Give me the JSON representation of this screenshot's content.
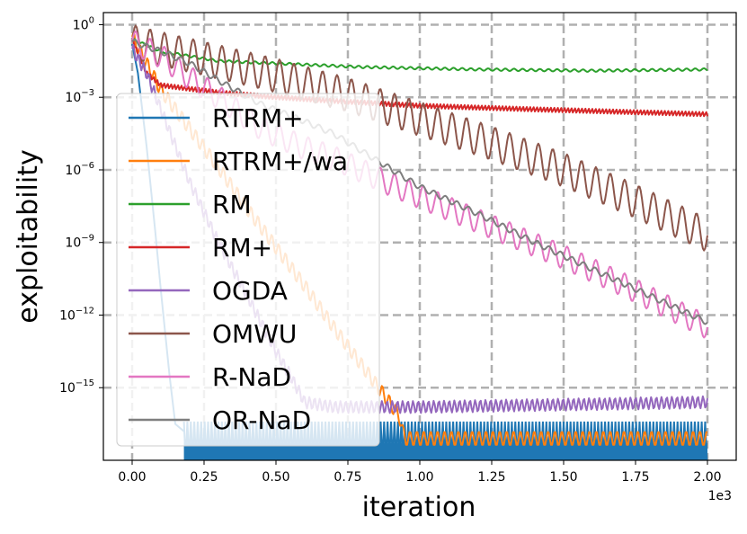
{
  "chart_data": {
    "type": "line",
    "title": "",
    "xlabel": "iteration",
    "ylabel": "exploitability",
    "x_scale_label": "1e3",
    "x_scale_factor": 1000,
    "xlim": [
      -0.1,
      2.1
    ],
    "x_ticks": [
      0.0,
      0.25,
      0.5,
      0.75,
      1.0,
      1.25,
      1.5,
      1.75,
      2.0
    ],
    "x_tick_labels": [
      "0.00",
      "0.25",
      "0.50",
      "0.75",
      "1.00",
      "1.25",
      "1.50",
      "1.75",
      "2.00"
    ],
    "ylim_log10": [
      -18.0,
      0.5
    ],
    "y_ticks_log10": [
      0,
      -3,
      -6,
      -9,
      -12,
      -15
    ],
    "y_tick_labels": [
      {
        "base": "10",
        "exp": "0"
      },
      {
        "base": "10",
        "exp": "−3"
      },
      {
        "base": "10",
        "exp": "−6"
      },
      {
        "base": "10",
        "exp": "−9"
      },
      {
        "base": "10",
        "exp": "−12"
      },
      {
        "base": "10",
        "exp": "−15"
      }
    ],
    "grid": true,
    "legend_position": "upper-left",
    "series": [
      {
        "name": "RTRM+",
        "color": "#1f77b4",
        "style": "drop_then_band",
        "x": [
          0.0,
          0.02,
          0.05,
          0.08,
          0.1,
          0.13,
          0.15,
          0.18
        ],
        "y_log10": [
          -0.8,
          -2.0,
          -5.0,
          -8.5,
          -11.0,
          -14.5,
          -16.5,
          -16.8
        ],
        "band_x": [
          0.18,
          2.0
        ],
        "band_log10": [
          -18.0,
          -16.4
        ],
        "osc_period": 0.012
      },
      {
        "name": "RTRM+/wa",
        "color": "#ff7f0e",
        "style": "line",
        "x": [
          0.0,
          0.1,
          0.2,
          0.3,
          0.4,
          0.5,
          0.6,
          0.7,
          0.8,
          0.85,
          0.9,
          0.93,
          0.94,
          0.95,
          2.0
        ],
        "y_log10": [
          -0.5,
          -2.7,
          -4.3,
          -5.9,
          -7.6,
          -9.2,
          -10.8,
          -12.5,
          -14.1,
          -14.9,
          -15.7,
          -16.2,
          -16.8,
          -17.1,
          -17.1
        ],
        "osc_amp": 0.3,
        "osc_period": 0.024
      },
      {
        "name": "RM",
        "color": "#2ca02c",
        "style": "line",
        "x": [
          0.0,
          0.1,
          0.3,
          0.5,
          0.8,
          1.2,
          1.6,
          2.0
        ],
        "y_log10": [
          -0.6,
          -1.1,
          -1.5,
          -1.6,
          -1.75,
          -1.85,
          -1.9,
          -1.85
        ],
        "osc_amp": 0.05,
        "osc_period": 0.03
      },
      {
        "name": "RM+",
        "color": "#d62728",
        "style": "line",
        "x": [
          0.0,
          0.05,
          0.1,
          0.3,
          0.5,
          0.7,
          1.0,
          1.4,
          1.7,
          2.0
        ],
        "y_log10": [
          -0.6,
          -2.0,
          -2.5,
          -2.8,
          -3.0,
          -3.15,
          -3.35,
          -3.5,
          -3.6,
          -3.7
        ],
        "osc_amp": 0.1,
        "osc_period": 0.012
      },
      {
        "name": "OGDA",
        "color": "#9467bd",
        "style": "line",
        "x": [
          0.0,
          0.05,
          0.1,
          0.15,
          0.2,
          0.3,
          0.4,
          0.5,
          0.55,
          0.6,
          0.7,
          1.0,
          1.5,
          2.0
        ],
        "y_log10": [
          -1.0,
          -2.0,
          -3.5,
          -5.0,
          -6.5,
          -9.0,
          -11.2,
          -13.5,
          -14.5,
          -15.6,
          -15.8,
          -15.8,
          -15.7,
          -15.6
        ],
        "osc_amp": 0.25,
        "osc_period": 0.018
      },
      {
        "name": "OMWU",
        "color": "#8c564b",
        "style": "line",
        "x": [
          0.0,
          0.1,
          0.25,
          0.5,
          0.75,
          1.0,
          1.25,
          1.5,
          1.75,
          2.0
        ],
        "y_log10": [
          -0.7,
          -1.0,
          -1.4,
          -2.1,
          -2.9,
          -3.9,
          -4.9,
          -6.0,
          -7.3,
          -8.7
        ],
        "osc_amp": 0.7,
        "osc_period": 0.05
      },
      {
        "name": "R-NaD",
        "color": "#e377c2",
        "style": "line",
        "x": [
          0.0,
          0.1,
          0.2,
          0.3,
          0.45,
          0.6,
          0.7,
          0.9,
          1.1,
          1.3,
          1.5,
          1.7,
          1.9,
          2.0
        ],
        "y_log10": [
          -0.7,
          -1.3,
          -2.2,
          -3.0,
          -4.3,
          -5.1,
          -5.5,
          -6.6,
          -7.6,
          -8.6,
          -9.6,
          -10.7,
          -11.9,
          -12.5
        ],
        "osc_amp": 0.5,
        "osc_period": 0.05
      },
      {
        "name": "OR-NaD",
        "color": "#7f7f7f",
        "style": "line",
        "x": [
          0.0,
          0.1,
          0.2,
          0.3,
          0.45,
          0.6,
          0.7,
          0.85,
          1.0,
          1.2,
          1.4,
          1.6,
          1.8,
          2.0
        ],
        "y_log10": [
          -0.7,
          -1.1,
          -1.6,
          -2.3,
          -3.3,
          -4.0,
          -4.5,
          -5.6,
          -6.7,
          -7.8,
          -9.0,
          -10.1,
          -11.2,
          -12.3
        ],
        "osc_amp": 0.12,
        "osc_period": 0.04
      }
    ]
  }
}
